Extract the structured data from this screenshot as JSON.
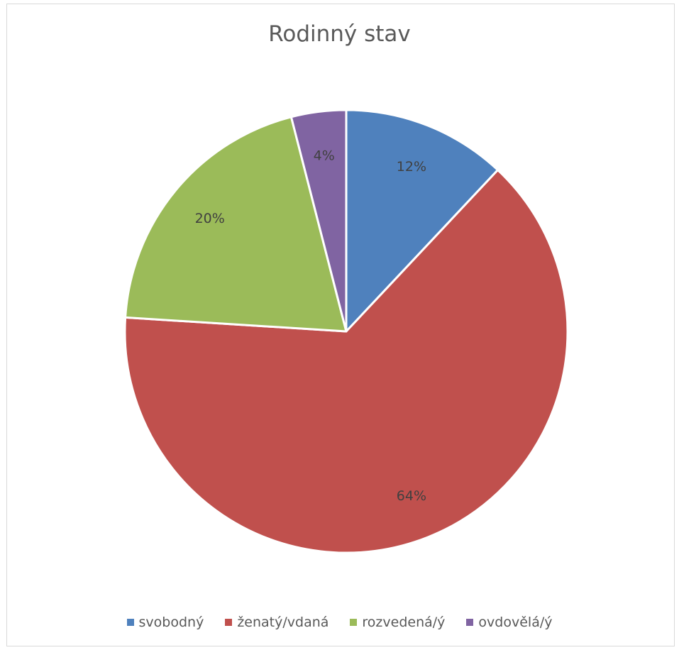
{
  "chart_data": {
    "type": "pie",
    "title": "Rodinný stav",
    "categories": [
      "svobodný",
      "ženatý/vdaná",
      "rozvedená/ý",
      "ovdovělá/ý"
    ],
    "values": [
      12,
      64,
      20,
      4
    ],
    "labels": [
      "12%",
      "64%",
      "20%",
      "4%"
    ],
    "colors": [
      "#4f81bd",
      "#c0504d",
      "#9bbb59",
      "#8064a2"
    ],
    "legend_position": "bottom",
    "start_angle": "top, clockwise"
  }
}
